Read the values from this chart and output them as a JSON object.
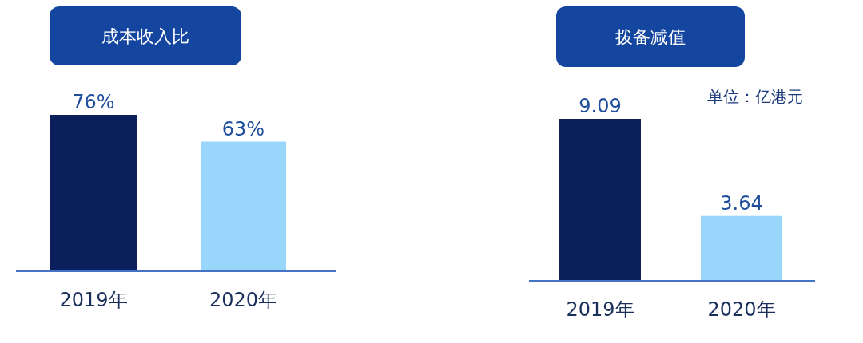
{
  "chart_data": [
    {
      "type": "bar",
      "title": "成本收入比",
      "categories": [
        "2019年",
        "2020年"
      ],
      "values": [
        76,
        63
      ],
      "value_labels": [
        "76%",
        "63%"
      ],
      "colors": [
        "#0a1f5c",
        "#99d6fb"
      ],
      "relative": false
    },
    {
      "type": "bar",
      "title": "拨备减值",
      "subtitle": "单位：亿港元",
      "categories": [
        "2019年",
        "2020年"
      ],
      "values": [
        9.09,
        3.64
      ],
      "value_labels": [
        "9.09",
        "3.64"
      ],
      "colors": [
        "#0a1f5c",
        "#99d6fb"
      ]
    }
  ]
}
